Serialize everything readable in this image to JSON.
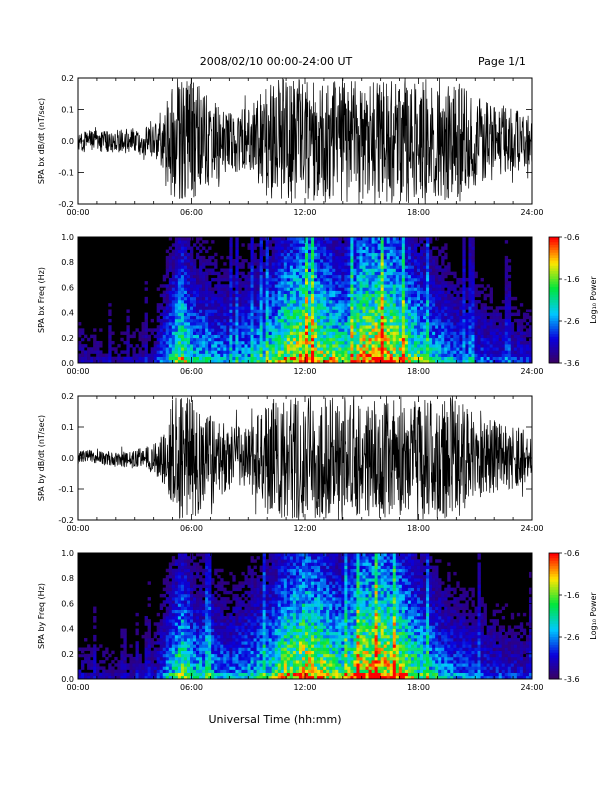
{
  "header": {
    "title": "2008/02/10  00:00-24:00 UT",
    "page": "Page 1/1"
  },
  "colorbar": {
    "label": "Log₁₀ Power",
    "ticks": [
      "-0.6",
      "-1.6",
      "-2.6",
      "-3.6"
    ],
    "range": [
      -3.6,
      -0.6
    ]
  },
  "colors": {
    "background": "#ffffff",
    "plot_fill": "#000000"
  },
  "chart_data": [
    {
      "type": "line",
      "ylabel": "SPA bx dB/dt (nT/sec)",
      "x_ticks": [
        "00:00",
        "06:00",
        "12:00",
        "18:00",
        "24:00"
      ],
      "xlim": [
        0,
        24
      ],
      "y_ticks": [
        "0.2",
        "0.1",
        "0.0",
        "-0.1",
        "-0.2"
      ],
      "ylim": [
        -0.2,
        0.2
      ],
      "envelope": {
        "hours": [
          0,
          1,
          2,
          3,
          4,
          4.6,
          5,
          5.4,
          6,
          7,
          8,
          9,
          10,
          10.3,
          11,
          12,
          13,
          14,
          15,
          16,
          17,
          18,
          19,
          20,
          21,
          22,
          23,
          24
        ],
        "amplitude": [
          0.03,
          0.035,
          0.035,
          0.04,
          0.05,
          0.09,
          0.2,
          0.2,
          0.2,
          0.15,
          0.1,
          0.1,
          0.18,
          0.2,
          0.2,
          0.2,
          0.2,
          0.2,
          0.2,
          0.2,
          0.2,
          0.2,
          0.2,
          0.2,
          0.15,
          0.12,
          0.1,
          0.08
        ]
      }
    },
    {
      "type": "heatmap",
      "ylabel": "SPA bx Freq (Hz)",
      "x_ticks": [
        "00:00",
        "06:00",
        "12:00",
        "18:00",
        "24:00"
      ],
      "xlim": [
        0,
        24
      ],
      "y_ticks": [
        "1.0",
        "0.8",
        "0.6",
        "0.4",
        "0.2",
        "0.0"
      ],
      "ylim": [
        0,
        1.0
      ],
      "zlim": [
        -3.6,
        -0.6
      ],
      "hours": [
        0,
        2,
        4,
        5,
        5.5,
        6,
        8,
        10,
        11,
        12,
        13,
        14,
        15,
        16,
        17,
        18,
        19,
        20,
        22,
        24
      ],
      "activity": [
        0.25,
        0.2,
        0.25,
        0.6,
        0.8,
        0.6,
        0.45,
        0.6,
        0.85,
        0.95,
        0.85,
        0.7,
        0.95,
        1.0,
        0.9,
        0.7,
        0.55,
        0.45,
        0.35,
        0.3
      ]
    },
    {
      "type": "line",
      "ylabel": "SPA by dB/dt (nT/sec)",
      "x_ticks": [
        "00:00",
        "06:00",
        "12:00",
        "18:00",
        "24:00"
      ],
      "xlim": [
        0,
        24
      ],
      "y_ticks": [
        "0.2",
        "0.1",
        "0.0",
        "-0.1",
        "-0.2"
      ],
      "ylim": [
        -0.2,
        0.2
      ],
      "envelope": {
        "hours": [
          0,
          1,
          2,
          3,
          4,
          4.6,
          5,
          5.4,
          6,
          7,
          8,
          9,
          10,
          10.3,
          11,
          12,
          13,
          14,
          15,
          16,
          17,
          18,
          19,
          20,
          21,
          22,
          23,
          24
        ],
        "amplitude": [
          0.02,
          0.02,
          0.025,
          0.03,
          0.045,
          0.09,
          0.2,
          0.2,
          0.2,
          0.15,
          0.1,
          0.1,
          0.18,
          0.2,
          0.2,
          0.2,
          0.2,
          0.2,
          0.2,
          0.2,
          0.2,
          0.2,
          0.2,
          0.2,
          0.15,
          0.12,
          0.1,
          0.08
        ]
      }
    },
    {
      "type": "heatmap",
      "ylabel": "SPA by Freq (Hz)",
      "x_ticks": [
        "00:00",
        "06:00",
        "12:00",
        "18:00",
        "24:00"
      ],
      "xlim": [
        0,
        24
      ],
      "y_ticks": [
        "1.0",
        "0.8",
        "0.6",
        "0.4",
        "0.2",
        "0.0"
      ],
      "ylim": [
        0,
        1.0
      ],
      "zlim": [
        -3.6,
        -0.6
      ],
      "hours": [
        0,
        2,
        4,
        5,
        5.5,
        6,
        8,
        10,
        11,
        12,
        13,
        14,
        15,
        16,
        17,
        18,
        19,
        20,
        22,
        24
      ],
      "activity": [
        0.25,
        0.2,
        0.25,
        0.6,
        0.8,
        0.6,
        0.45,
        0.6,
        0.85,
        0.95,
        0.85,
        0.7,
        0.95,
        1.0,
        0.9,
        0.7,
        0.55,
        0.45,
        0.35,
        0.3
      ]
    }
  ],
  "xaxis": {
    "title": "Universal Time (hh:mm)"
  }
}
